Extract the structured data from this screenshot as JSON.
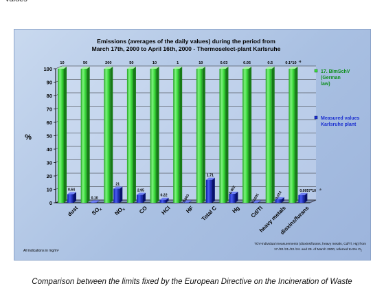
{
  "top_fragment": "values",
  "caption": "Comparison between the limits fixed by the European Directive on the Incineration of Waste",
  "chart_data": {
    "type": "bar",
    "title_line1": "Emissions (averages of the daily values) during the period from",
    "title_line2": "March 17th, 2000 to April 16th, 2000 - Thermoselect-plant Karlsruhe",
    "ylabel": "%",
    "ylim": [
      0,
      100
    ],
    "yticks": [
      0,
      10,
      20,
      30,
      40,
      50,
      60,
      70,
      80,
      90,
      100
    ],
    "grid": true,
    "categories": [
      {
        "main": "dust",
        "sub": ""
      },
      {
        "main": "SO",
        "sub": "x"
      },
      {
        "main": "NO",
        "sub": "x"
      },
      {
        "main": "CO",
        "sub": ""
      },
      {
        "main": "HCl",
        "sub": ""
      },
      {
        "main": "HF",
        "sub": ""
      },
      {
        "main": "Total C",
        "sub": ""
      },
      {
        "main": "Hg",
        "sub": ""
      },
      {
        "main": "Cd/Tl",
        "sub": ""
      },
      {
        "main": "heavy metals",
        "sub": ""
      },
      {
        "main": "dioxins/furans",
        "sub": ""
      }
    ],
    "series": [
      {
        "name": "17. BImSchV (German law)",
        "legend_lines": [
          "17. BImSchV",
          "(German",
          "law)"
        ],
        "color": "#3ddc3d",
        "values": [
          100,
          100,
          100,
          100,
          100,
          100,
          100,
          100,
          100,
          100,
          100
        ],
        "top_labels": [
          "10",
          "50",
          "200",
          "50",
          "10",
          "1",
          "10",
          "0.03",
          "0.05",
          "0.5",
          "0.1*10"
        ],
        "top_label_suffix_last": "-9"
      },
      {
        "name": "Measured values Karlsruhe plant",
        "legend_lines": [
          "Measured values",
          "Karlsruhe plant"
        ],
        "color": "#1a2fd6",
        "values": [
          6.4,
          0.2,
          10.5,
          5.9,
          2.2,
          0.3,
          17.1,
          6.7,
          0.3,
          2.6,
          5.7
        ],
        "data_labels": [
          "0.64",
          "0.10",
          "21",
          "2.95",
          "0.22",
          "0.003",
          "1.71",
          "0.002",
          "0.0001",
          "0.013",
          "0.0057*10"
        ],
        "data_label_suffix_last": "-9"
      }
    ],
    "footnote_left": "All indications in mg/m³",
    "footnote_right_line1": "TÜV-individual measurements (dioxins/furans, heavy metals, Cd/Tl, Hg) from",
    "footnote_right_line2": "17./20./21./22./24. and 29. of March 2000, referred to 9% O",
    "footnote_right_sub": "2"
  }
}
